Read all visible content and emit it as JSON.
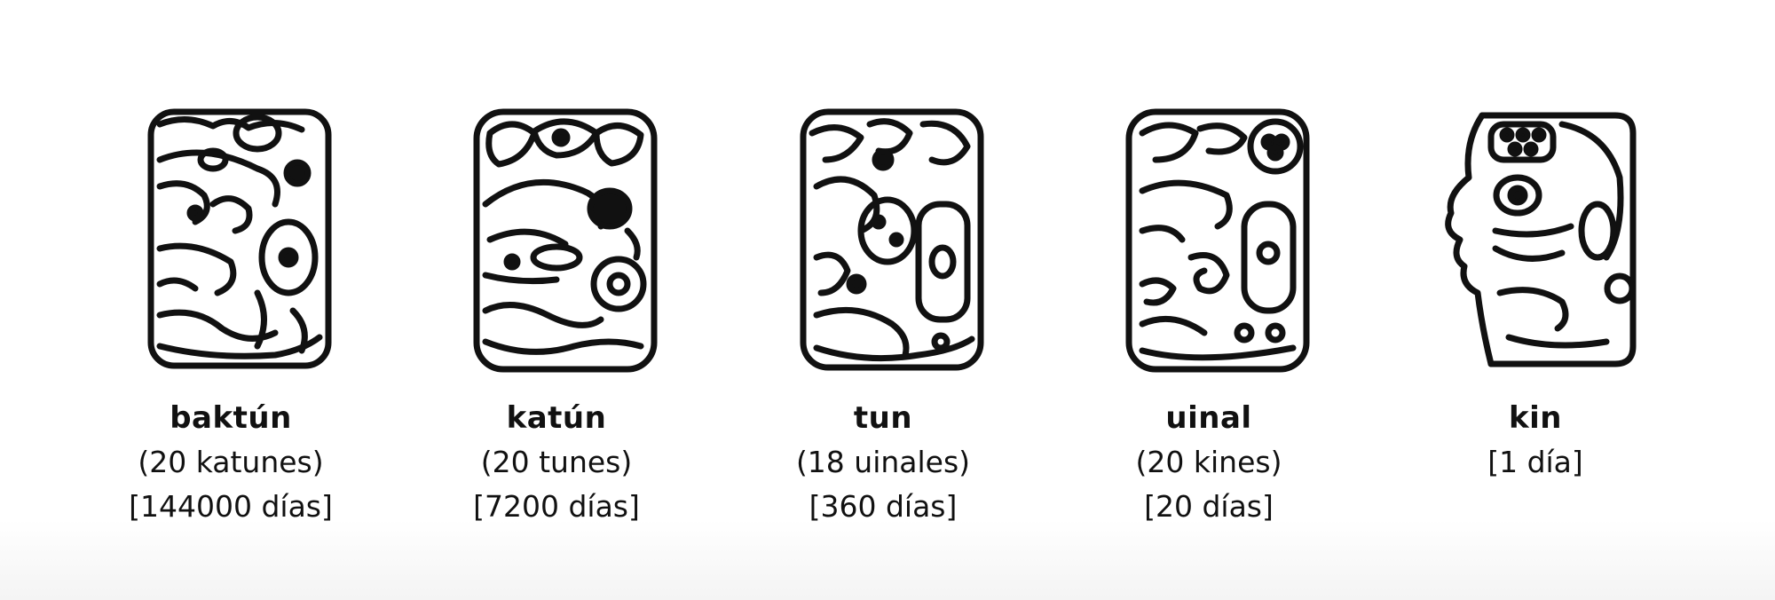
{
  "units": [
    {
      "name": "baktún",
      "composition": "(20 katunes)",
      "days": "[144000 días]",
      "glyph_icon": "baktun-head-glyph-icon"
    },
    {
      "name": "katún",
      "composition": "(20 tunes)",
      "days": "[7200 días]",
      "glyph_icon": "katun-head-glyph-icon"
    },
    {
      "name": "tun",
      "composition": "(18 uinales)",
      "days": "[360 días]",
      "glyph_icon": "tun-head-glyph-icon"
    },
    {
      "name": "uinal",
      "composition": "(20 kines)",
      "days": "[20 días]",
      "glyph_icon": "uinal-head-glyph-icon"
    },
    {
      "name": "kin",
      "composition": "[1 día]",
      "glyph_icon": "kin-head-glyph-icon"
    }
  ]
}
